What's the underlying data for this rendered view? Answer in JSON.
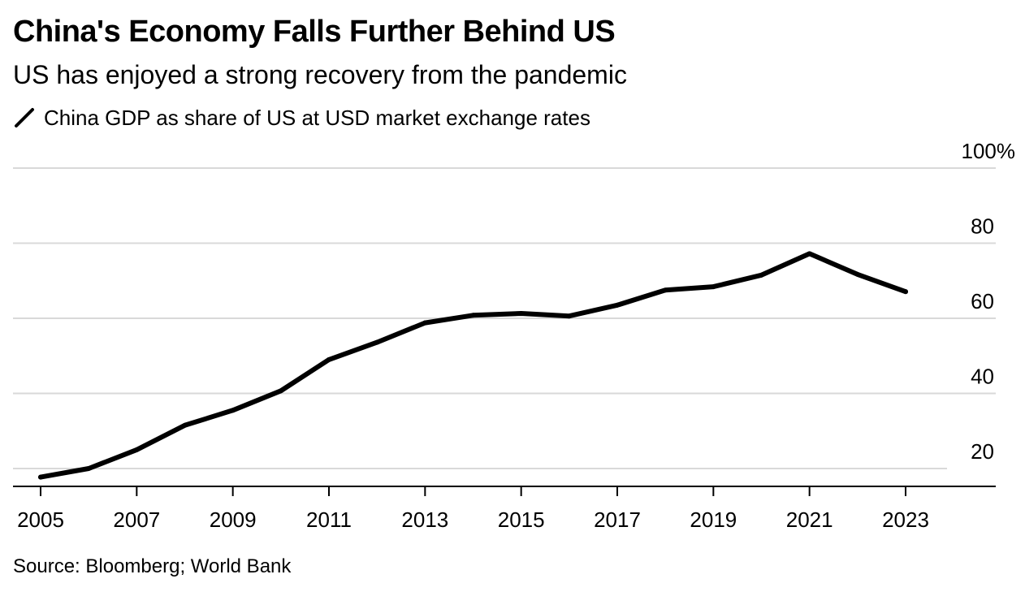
{
  "header": {
    "title": "China's Economy Falls Further Behind US",
    "subtitle": "US has enjoyed a strong recovery from the pandemic"
  },
  "legend": {
    "label": "China GDP as share of US at USD market exchange rates",
    "icon": "diagonal-line-icon",
    "color": "#000000"
  },
  "footer": {
    "source": "Source: Bloomberg; World Bank"
  },
  "chart_data": {
    "type": "line",
    "title": "China's Economy Falls Further Behind US",
    "subtitle": "US has enjoyed a strong recovery from the pandemic",
    "xlabel": "",
    "ylabel": "",
    "xlim": [
      2005,
      2023
    ],
    "ylim": [
      15,
      100
    ],
    "x_ticks": [
      "2005",
      "2007",
      "2009",
      "2011",
      "2013",
      "2015",
      "2017",
      "2019",
      "2021",
      "2023"
    ],
    "y_ticks": [
      {
        "value": 20,
        "label": "20"
      },
      {
        "value": 40,
        "label": "40"
      },
      {
        "value": 60,
        "label": "60"
      },
      {
        "value": 80,
        "label": "80"
      },
      {
        "value": 100,
        "label": "100%"
      }
    ],
    "grid": true,
    "legend_position": "top-left",
    "series": [
      {
        "name": "China GDP as share of US at USD market exchange rates",
        "color": "#000000",
        "x": [
          2005,
          2006,
          2007,
          2008,
          2009,
          2010,
          2011,
          2012,
          2013,
          2014,
          2015,
          2016,
          2017,
          2018,
          2019,
          2020,
          2021,
          2022,
          2023
        ],
        "values": [
          17.7,
          20.0,
          25.0,
          31.5,
          35.5,
          40.7,
          49.0,
          53.6,
          58.8,
          60.8,
          61.3,
          60.6,
          63.5,
          67.5,
          68.4,
          71.5,
          77.2,
          71.7,
          67.1
        ]
      }
    ]
  }
}
